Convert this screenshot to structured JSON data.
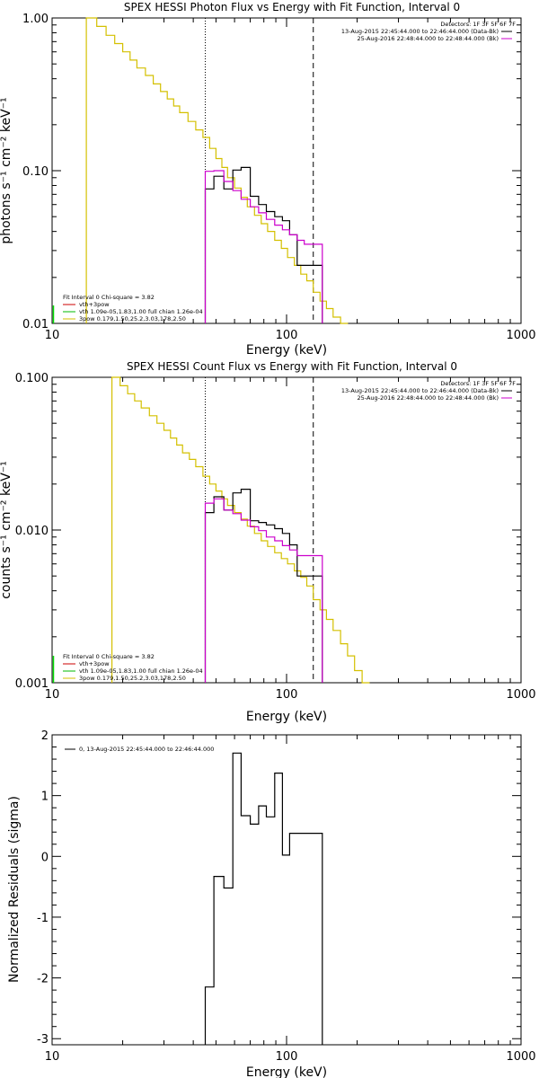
{
  "chart_data": [
    {
      "type": "line",
      "title": "SPEX HESSI Photon Flux vs Energy with Fit Function, Interval 0",
      "xlabel": "Energy (keV)",
      "ylabel": "photons s⁻¹ cm⁻² keV⁻¹",
      "xscale": "log",
      "yscale": "log",
      "xlim": [
        10,
        1000
      ],
      "ylim": [
        0.01,
        1.0
      ],
      "x_ticks": [
        "10",
        "100",
        "1000"
      ],
      "y_ticks": [
        "0.01",
        "0.10",
        "1.00"
      ],
      "vlines": [
        {
          "x": 45,
          "style": "dotted"
        },
        {
          "x": 130,
          "style": "dashed"
        }
      ],
      "top_right_text": [
        "Detectors: 1F 3F 5F 6F 7F",
        "13-Aug-2015 22:45:44.000 to 22:46:44.000 (Data-Bk)",
        "25-Aug-2016 22:48:44.000 to 22:48:44.000 (Bk)"
      ],
      "legend_text": [
        "Fit Interval 0   Chi-square = 3.82",
        "vth+3pow",
        "vth 1.09e-05,1.83,1.00  full chian 1.26e-04",
        "3pow 0.179,1.50,25.2,3.03,178,2.50"
      ],
      "series": [
        {
          "name": "vth+3pow",
          "color": "#d4c000",
          "style": "step",
          "x": [
            14,
            15.5,
            17,
            18.5,
            20,
            21.5,
            23,
            25,
            27,
            29,
            31,
            33,
            35,
            38,
            41,
            44,
            47,
            50,
            53,
            56,
            60,
            64,
            68,
            73,
            78,
            83,
            89,
            95,
            101,
            108,
            115,
            122,
            130,
            139,
            148,
            158,
            170
          ],
          "y": [
            1.0,
            0.88,
            0.77,
            0.68,
            0.6,
            0.53,
            0.47,
            0.42,
            0.37,
            0.33,
            0.295,
            0.265,
            0.24,
            0.21,
            0.185,
            0.165,
            0.14,
            0.12,
            0.105,
            0.09,
            0.077,
            0.067,
            0.058,
            0.051,
            0.045,
            0.04,
            0.035,
            0.031,
            0.027,
            0.024,
            0.021,
            0.019,
            0.016,
            0.014,
            0.0125,
            0.011,
            0.0098
          ]
        },
        {
          "name": "",
          "color": "#000000",
          "style": "step",
          "x": [
            45,
            49,
            54,
            59,
            64,
            70,
            76,
            82,
            89,
            96,
            103,
            111,
            119,
            130
          ],
          "y": [
            0.076,
            0.092,
            0.076,
            0.101,
            0.105,
            0.068,
            0.06,
            0.054,
            0.05,
            0.047,
            0.038,
            0.024,
            0.024,
            0.024
          ]
        },
        {
          "name": "",
          "color": "#cc00cc",
          "style": "step",
          "x": [
            45,
            49,
            54,
            59,
            64,
            70,
            76,
            82,
            89,
            96,
            103,
            111,
            119,
            130
          ],
          "y": [
            0.099,
            0.1,
            0.085,
            0.074,
            0.065,
            0.058,
            0.053,
            0.048,
            0.044,
            0.041,
            0.038,
            0.035,
            0.033,
            0.033
          ]
        }
      ]
    },
    {
      "type": "line",
      "title": "SPEX HESSI Count Flux vs Energy with Fit Function, Interval 0",
      "xlabel": "Energy (keV)",
      "ylabel": "counts s⁻¹ cm⁻² keV⁻¹",
      "xscale": "log",
      "yscale": "log",
      "xlim": [
        10,
        1000
      ],
      "ylim": [
        0.001,
        0.1
      ],
      "x_ticks": [
        "10",
        "100",
        "1000"
      ],
      "y_ticks": [
        "0.001",
        "0.010",
        "0.100"
      ],
      "vlines": [
        {
          "x": 45,
          "style": "dotted"
        },
        {
          "x": 130,
          "style": "dashed"
        }
      ],
      "top_right_text": [
        "Detectors: 1F 3F 5F 6F 7F",
        "13-Aug-2015 22:45:44.000 to 22:46:44.000 (Data-Bk)",
        "25-Aug-2016 22:48:44.000 to 22:48:44.000 (Bk)"
      ],
      "legend_text": [
        "Fit Interval 0   Chi-square = 3.82",
        "vth+3pow",
        "vth 1.09e-05,1.83,1.00  full chian 1.26e-04",
        "3pow 0.179,1.50,25.2,3.03,178,2.50"
      ],
      "series": [
        {
          "name": "vth+3pow",
          "color": "#d4c000",
          "style": "step",
          "x": [
            18,
            19.5,
            21,
            22.5,
            24,
            26,
            28,
            30,
            32,
            34,
            36,
            38.5,
            41,
            44,
            47,
            50,
            53,
            56,
            60,
            64,
            68,
            73,
            78,
            83,
            89,
            95,
            101,
            108,
            115,
            122,
            130,
            139,
            148,
            158,
            170,
            182,
            195,
            210
          ],
          "y": [
            0.1,
            0.088,
            0.078,
            0.07,
            0.063,
            0.056,
            0.05,
            0.045,
            0.04,
            0.036,
            0.032,
            0.029,
            0.026,
            0.0225,
            0.02,
            0.018,
            0.016,
            0.0145,
            0.013,
            0.0118,
            0.0106,
            0.0095,
            0.0085,
            0.0078,
            0.0071,
            0.0065,
            0.006,
            0.0054,
            0.0049,
            0.0043,
            0.0035,
            0.003,
            0.0026,
            0.0022,
            0.0018,
            0.0015,
            0.0012,
            0.001
          ]
        },
        {
          "name": "",
          "color": "#000000",
          "style": "step",
          "x": [
            45,
            49,
            54,
            59,
            64,
            70,
            76,
            82,
            89,
            96,
            103,
            111,
            119,
            130
          ],
          "y": [
            0.013,
            0.0165,
            0.0135,
            0.0175,
            0.0185,
            0.0115,
            0.0112,
            0.0108,
            0.0102,
            0.0095,
            0.008,
            0.005,
            0.005,
            0.005
          ]
        },
        {
          "name": "",
          "color": "#cc00cc",
          "style": "step",
          "x": [
            45,
            49,
            54,
            59,
            64,
            70,
            76,
            82,
            89,
            96,
            103,
            111,
            119,
            130
          ],
          "y": [
            0.015,
            0.016,
            0.0135,
            0.0128,
            0.0116,
            0.0105,
            0.0099,
            0.009,
            0.0085,
            0.0079,
            0.0074,
            0.0068,
            0.0068,
            0.0068
          ]
        }
      ]
    },
    {
      "type": "line",
      "title": "",
      "xlabel": "Energy (keV)",
      "ylabel": "Normalized Residuals (sigma)",
      "xscale": "log",
      "yscale": "linear",
      "xlim": [
        10,
        1000
      ],
      "ylim": [
        -3.1,
        2.0
      ],
      "x_ticks": [
        "10",
        "100",
        "1000"
      ],
      "y_ticks": [
        "-3",
        "-2",
        "-1",
        "0",
        "1",
        "2"
      ],
      "legend_text": [
        "0, 13-Aug-2015 22:45:44.000 to 22:46:44.000"
      ],
      "series": [
        {
          "name": "0, 13-Aug-2015 22:45:44.000 to 22:46:44.000",
          "color": "#000000",
          "style": "step",
          "x": [
            45,
            49,
            54,
            59,
            64,
            70,
            76,
            82,
            89,
            96,
            103,
            111,
            119,
            130
          ],
          "y": [
            -2.15,
            -0.33,
            -0.52,
            1.7,
            0.67,
            0.53,
            0.83,
            0.65,
            1.37,
            0.02,
            0.38,
            0.38,
            0.38,
            0.38
          ]
        }
      ]
    }
  ]
}
